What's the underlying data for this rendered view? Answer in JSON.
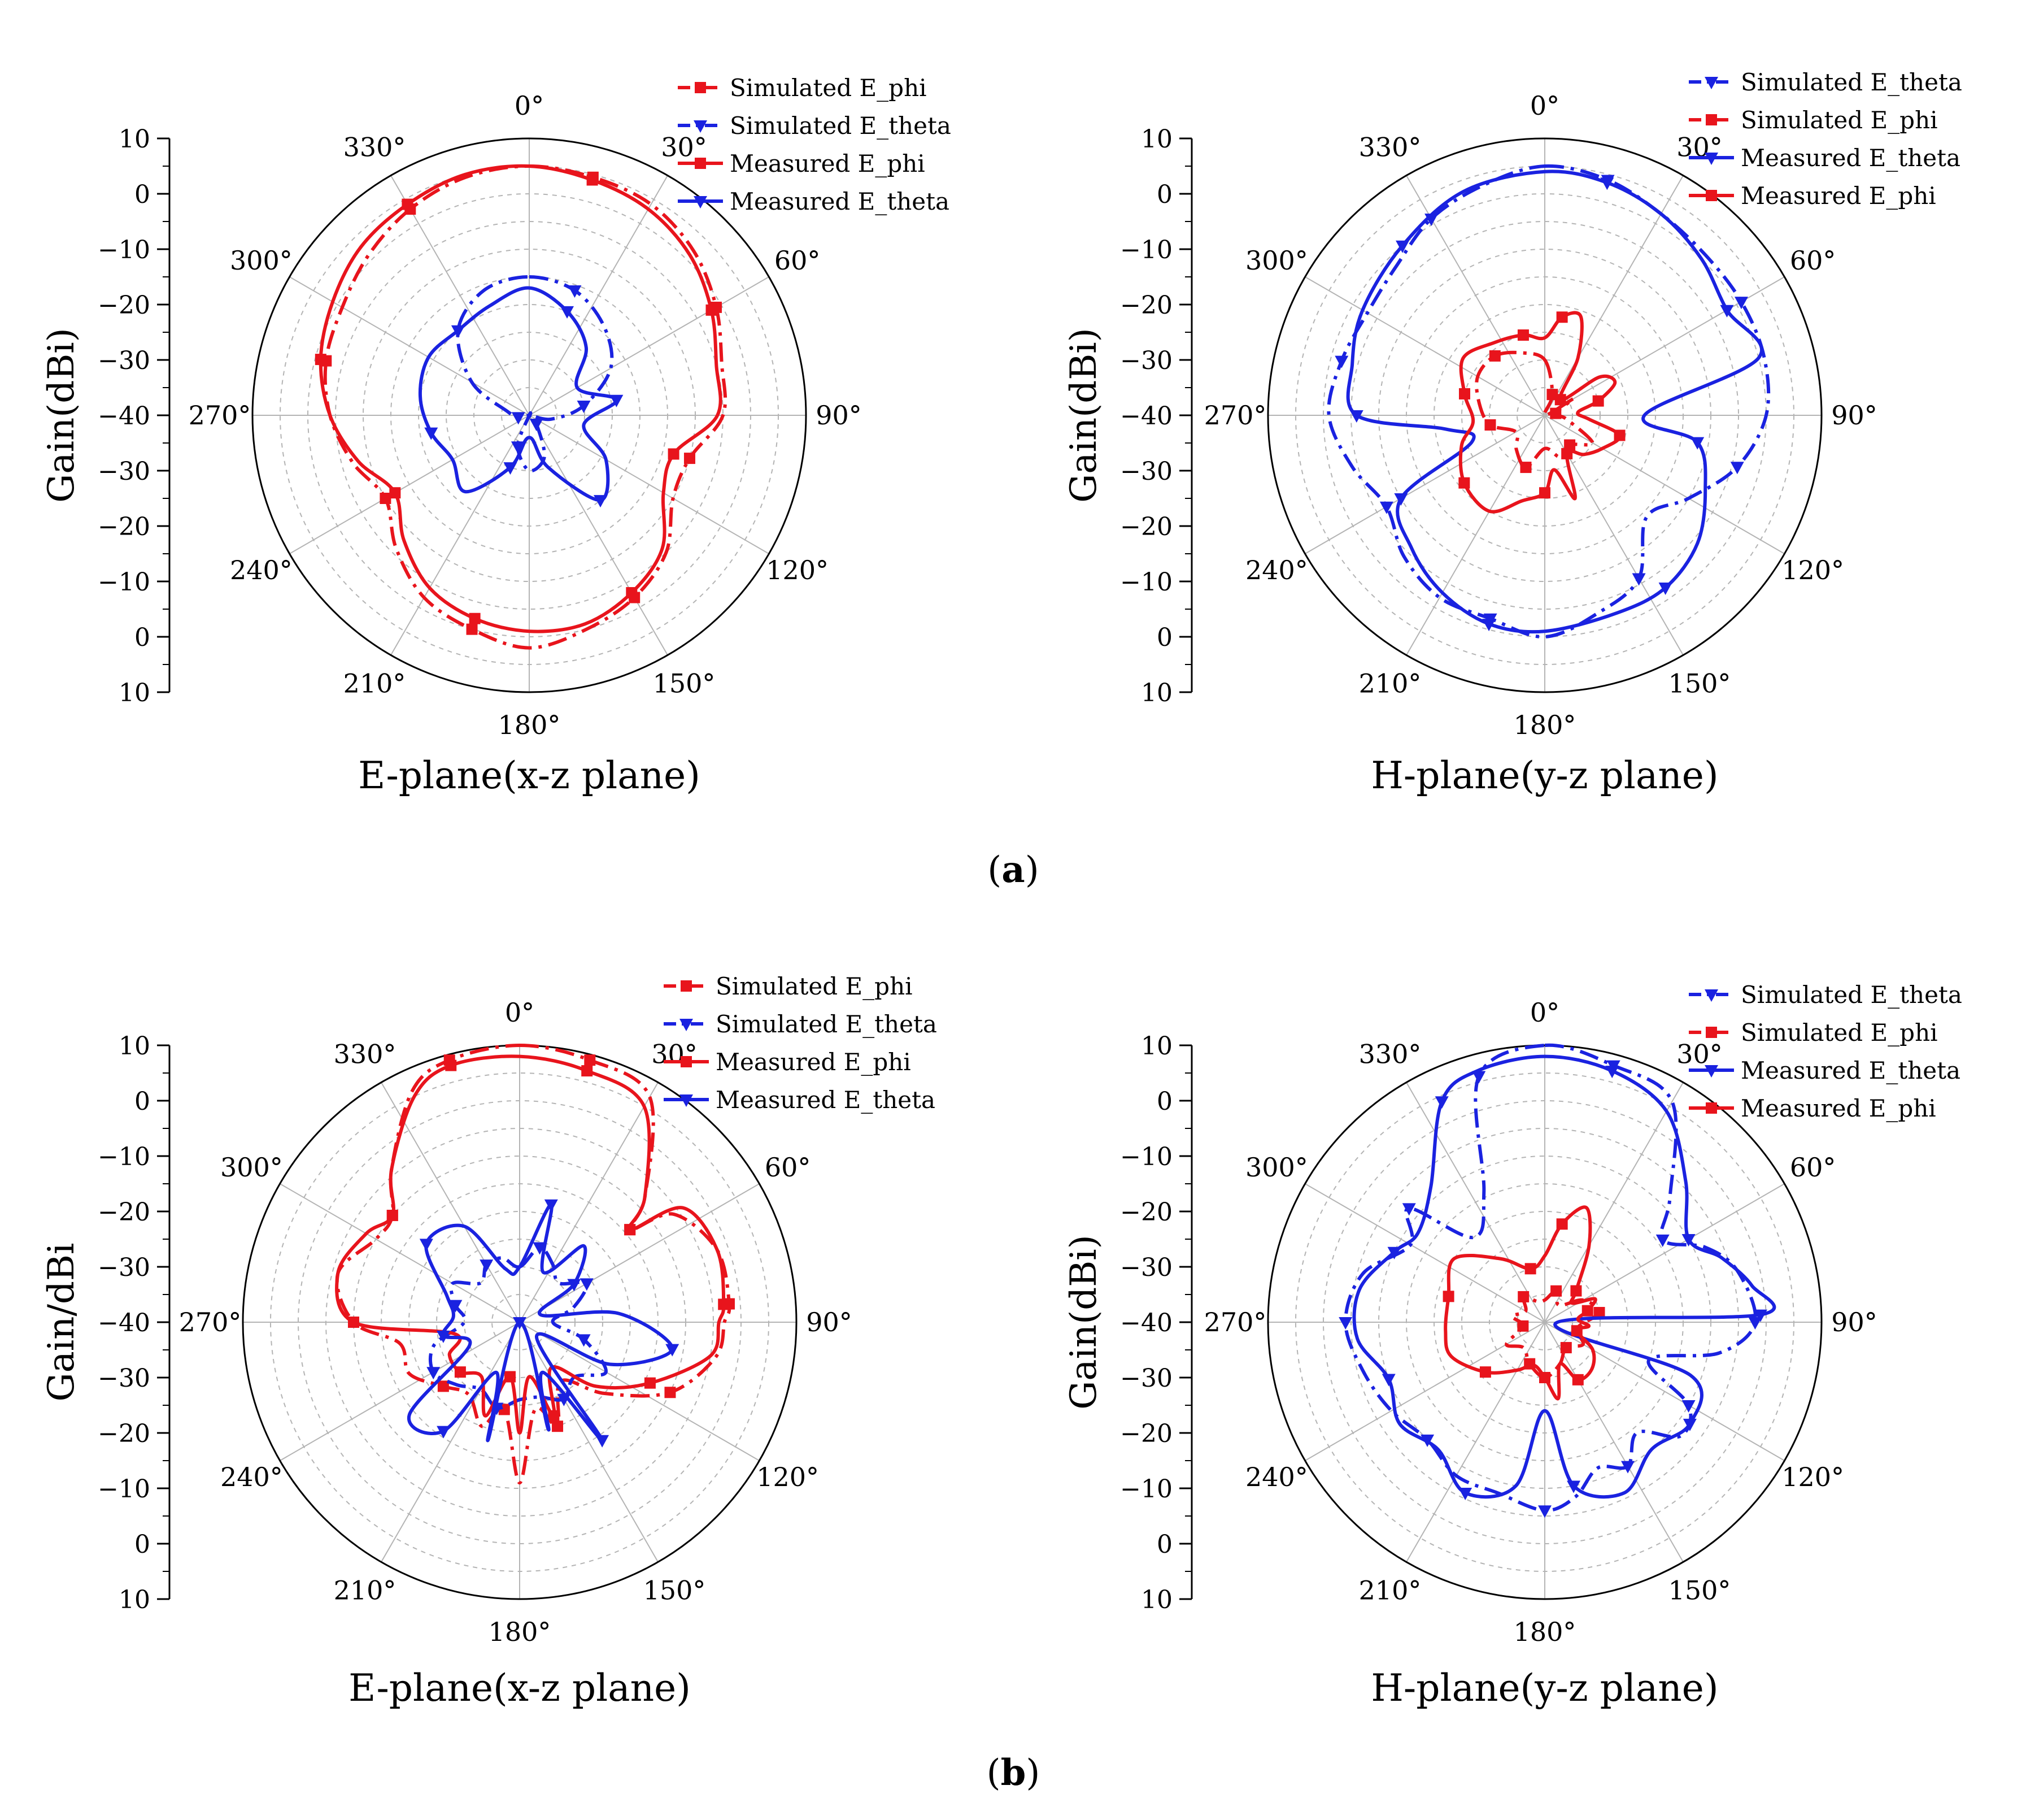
{
  "figure": {
    "captions": [
      {
        "open": "(",
        "letter": "a",
        "close": ")"
      },
      {
        "open": "(",
        "letter": "b",
        "close": ")"
      }
    ]
  },
  "colors": {
    "red": "#e8141c",
    "blue": "#1a22e0",
    "grid": "#b4b4b4"
  },
  "chart_data": [
    {
      "type": "polar-line",
      "title": "E-plane(x-z plane)",
      "ylabel": "Gain(dBi)",
      "radial_range": [
        -40,
        10
      ],
      "radial_ticks": [
        "10",
        "0",
        "-10",
        "-20",
        "-30",
        "-40",
        "-30",
        "-20",
        "-10",
        "0",
        "10"
      ],
      "angle_labels": [
        "0°",
        "30°",
        "60°",
        "90°",
        "120°",
        "150°",
        "180°",
        "210°",
        "240°",
        "270°",
        "300°",
        "330°"
      ],
      "legend": [
        "Simulated E_phi",
        "Simulated E_theta",
        "Measured E_phi",
        "Measured E_theta"
      ],
      "series": [
        {
          "name": "Simulated E_phi",
          "color": "red",
          "style": "dashdot",
          "marker": "square",
          "angles": [
            0,
            15,
            30,
            45,
            60,
            75,
            90,
            105,
            120,
            135,
            150,
            165,
            180,
            195,
            210,
            225,
            240,
            255,
            270,
            285,
            300,
            315,
            330,
            345
          ],
          "values": [
            5,
            4.5,
            4,
            2,
            -1,
            -4,
            -5,
            -10,
            -10,
            -5,
            -2,
            0,
            2,
            0,
            -2,
            -6,
            -10,
            -7,
            -4,
            -2,
            -1,
            1,
            3,
            4.5
          ]
        },
        {
          "name": "Simulated E_theta",
          "color": "blue",
          "style": "dashdot",
          "marker": "triangle",
          "angles": [
            0,
            20,
            40,
            60,
            80,
            100,
            120,
            140,
            160,
            180,
            200,
            220,
            240,
            260,
            280,
            300,
            320,
            340
          ],
          "values": [
            -15,
            -16,
            -19,
            -23,
            -30,
            -36,
            -40,
            -38,
            -32,
            -30,
            -34,
            -40,
            -40,
            -38,
            -36,
            -28,
            -20,
            -16
          ]
        },
        {
          "name": "Measured E_phi",
          "color": "red",
          "style": "solid",
          "marker": "square",
          "angles": [
            0,
            15,
            30,
            45,
            60,
            75,
            90,
            105,
            120,
            135,
            150,
            165,
            180,
            195,
            210,
            225,
            240,
            255,
            270,
            285,
            300,
            315,
            330,
            345
          ],
          "values": [
            5,
            4,
            3,
            1,
            -2,
            -5,
            -6,
            -13,
            -12,
            -6,
            -3,
            -1,
            -1,
            -2,
            -4,
            -8,
            -12,
            -8,
            -4,
            -1,
            1,
            3,
            4,
            5
          ]
        },
        {
          "name": "Measured E_theta",
          "color": "blue",
          "style": "solid",
          "marker": "triangle",
          "angles": [
            0,
            20,
            40,
            60,
            80,
            100,
            120,
            140,
            160,
            180,
            200,
            220,
            240,
            260,
            280,
            300,
            320,
            340
          ],
          "values": [
            -17,
            -20,
            -24,
            -30,
            -24,
            -30,
            -24,
            -20,
            -30,
            -36,
            -30,
            -22,
            -24,
            -22,
            -20,
            -19,
            -20,
            -19
          ]
        }
      ]
    },
    {
      "type": "polar-line",
      "title": "H-plane(y-z plane)",
      "ylabel": "Gain(dBi)",
      "radial_range": [
        -40,
        10
      ],
      "radial_ticks": [
        "10",
        "0",
        "-10",
        "-20",
        "-30",
        "-40",
        "-30",
        "-20",
        "-10",
        "0",
        "10"
      ],
      "angle_labels": [
        "0°",
        "30°",
        "60°",
        "90°",
        "120°",
        "150°",
        "180°",
        "210°",
        "240°",
        "270°",
        "300°",
        "330°"
      ],
      "legend": [
        "Simulated E_theta",
        "Simulated E_phi",
        "Measured E_theta",
        "Measured E_phi"
      ],
      "series": [
        {
          "name": "Simulated E_theta",
          "color": "blue",
          "style": "dashdot",
          "marker": "triangle",
          "angles": [
            0,
            15,
            30,
            45,
            60,
            75,
            90,
            105,
            120,
            135,
            150,
            165,
            180,
            195,
            210,
            225,
            240,
            255,
            270,
            285,
            300,
            315,
            330,
            345
          ],
          "values": [
            5,
            4,
            2,
            1,
            1,
            1,
            0,
            -4,
            -10,
            -14,
            -6,
            -3,
            0,
            -2,
            -2,
            -4,
            -7,
            -4,
            -1,
            -2,
            -3,
            -2,
            1,
            3
          ]
        },
        {
          "name": "Simulated E_phi",
          "color": "red",
          "style": "dashdot",
          "marker": "square",
          "angles": [
            0,
            20,
            40,
            60,
            80,
            100,
            120,
            140,
            160,
            180,
            200,
            220,
            240,
            260,
            280,
            300,
            320,
            340
          ],
          "values": [
            -30,
            -36,
            -40,
            -34,
            -38,
            -36,
            -30,
            -33,
            -32,
            -34,
            -30,
            -32,
            -34,
            -30,
            -28,
            -26,
            -26,
            -28
          ]
        },
        {
          "name": "Measured E_theta",
          "color": "blue",
          "style": "solid",
          "marker": "triangle",
          "angles": [
            0,
            15,
            30,
            45,
            60,
            75,
            90,
            100,
            115,
            130,
            145,
            160,
            180,
            195,
            210,
            225,
            240,
            250,
            262,
            270,
            285,
            300,
            320,
            340
          ],
          "values": [
            4,
            3.5,
            2,
            0,
            -2,
            0,
            -22,
            -12,
            -8,
            -4,
            -2,
            -2,
            -1,
            -1,
            -3,
            -6,
            -10,
            -26,
            -22,
            -6,
            -4,
            -2,
            0,
            3
          ]
        },
        {
          "name": "Measured E_phi",
          "color": "red",
          "style": "solid",
          "marker": "square",
          "angles": [
            0,
            10,
            20,
            30,
            45,
            55,
            65,
            75,
            85,
            95,
            105,
            120,
            135,
            150,
            160,
            170,
            180,
            195,
            210,
            230,
            250,
            265,
            285,
            305,
            325,
            345
          ],
          "values": [
            -26,
            -22,
            -21,
            -28,
            -36,
            -28,
            -26,
            -30,
            -34,
            -32,
            -26,
            -28,
            -30,
            -32,
            -24,
            -30,
            -26,
            -24,
            -20,
            -21,
            -24,
            -27,
            -25,
            -22,
            -24,
            -25
          ]
        }
      ]
    },
    {
      "type": "polar-line",
      "title": "E-plane(x-z plane)",
      "ylabel": "Gain/dBi",
      "radial_range": [
        -40,
        10
      ],
      "radial_ticks": [
        "10",
        "0",
        "-10",
        "-20",
        "-30",
        "-40",
        "-30",
        "-20",
        "-10",
        "0",
        "10"
      ],
      "angle_labels": [
        "0°",
        "30°",
        "60°",
        "90°",
        "120°",
        "150°",
        "180°",
        "210°",
        "240°",
        "270°",
        "300°",
        "330°"
      ],
      "legend": [
        "Simulated E_phi",
        "Simulated E_theta",
        "Measured E_phi",
        "Measured E_theta"
      ],
      "series": [
        {
          "name": "Simulated E_phi",
          "color": "red",
          "style": "dashdot",
          "marker": "square",
          "angles": [
            0,
            15,
            30,
            45,
            50,
            55,
            70,
            85,
            90,
            100,
            115,
            130,
            145,
            160,
            170,
            180,
            190,
            200,
            215,
            230,
            245,
            260,
            270,
            285,
            300,
            310,
            320,
            335,
            345
          ],
          "values": [
            10,
            9,
            7,
            -8,
            -14,
            -6,
            -2,
            -2,
            -3,
            -4,
            -10,
            -20,
            -27,
            -20,
            -24,
            -11,
            -24,
            -20,
            -24,
            -22,
            -18,
            -18,
            -10,
            -6,
            -10,
            -10,
            -4,
            6,
            9
          ]
        },
        {
          "name": "Simulated E_theta",
          "color": "blue",
          "style": "dashdot",
          "marker": "triangle",
          "angles": [
            0,
            15,
            30,
            45,
            60,
            75,
            90,
            105,
            120,
            135,
            150,
            165,
            180,
            195,
            210,
            225,
            240,
            255,
            270,
            285,
            300,
            315,
            330,
            345
          ],
          "values": [
            -30,
            -26,
            -28,
            -30,
            -26,
            -30,
            -34,
            -28,
            -22,
            -26,
            -24,
            -26,
            -26,
            -24,
            -26,
            -24,
            -22,
            -24,
            -30,
            -28,
            -26,
            -30,
            -28,
            -28
          ]
        },
        {
          "name": "Measured E_phi",
          "color": "red",
          "style": "solid",
          "marker": "square",
          "angles": [
            0,
            15,
            30,
            45,
            50,
            55,
            70,
            85,
            90,
            100,
            115,
            130,
            145,
            160,
            170,
            180,
            190,
            200,
            215,
            230,
            245,
            260,
            270,
            285,
            300,
            310,
            320,
            335,
            345
          ],
          "values": [
            8,
            7,
            5,
            -8,
            -14,
            -4,
            -2,
            -3,
            -4,
            -5,
            -14,
            -22,
            -30,
            -22,
            -30,
            -20,
            -30,
            -22,
            -28,
            -26,
            -26,
            -28,
            -10,
            -6,
            -8,
            -10,
            -4,
            5,
            8
          ]
        },
        {
          "name": "Measured E_theta",
          "color": "blue",
          "style": "solid",
          "marker": "triangle",
          "angles": [
            0,
            15,
            25,
            40,
            55,
            70,
            85,
            100,
            115,
            130,
            145,
            155,
            165,
            180,
            195,
            205,
            215,
            230,
            245,
            260,
            275,
            290,
            310,
            330,
            345
          ],
          "values": [
            -30,
            -18,
            -30,
            -22,
            -28,
            -36,
            -22,
            -12,
            -22,
            -36,
            -14,
            -30,
            -20,
            -40,
            -18,
            -30,
            -16,
            -14,
            -30,
            -26,
            -28,
            -26,
            -18,
            -20,
            -30
          ]
        }
      ]
    },
    {
      "type": "polar-line",
      "title": "H-plane(y-z plane)",
      "ylabel": "Gain(dBi)",
      "radial_range": [
        -40,
        10
      ],
      "radial_ticks": [
        "10",
        "0",
        "-10",
        "-20",
        "-30",
        "-40",
        "-30",
        "-20",
        "-10",
        "0",
        "10"
      ],
      "angle_labels": [
        "0°",
        "30°",
        "60°",
        "90°",
        "120°",
        "150°",
        "180°",
        "210°",
        "240°",
        "270°",
        "300°",
        "330°"
      ],
      "legend": [
        "Simulated E_theta",
        "Simulated E_phi",
        "Measured E_theta",
        "Measured E_phi"
      ],
      "series": [
        {
          "name": "Simulated E_theta",
          "color": "blue",
          "style": "dashdot",
          "marker": "triangle",
          "angles": [
            0,
            15,
            30,
            45,
            55,
            65,
            75,
            90,
            100,
            110,
            120,
            130,
            140,
            150,
            160,
            170,
            180,
            195,
            210,
            225,
            240,
            255,
            270,
            285,
            300,
            310,
            320,
            335,
            345
          ],
          "values": [
            10,
            8,
            6,
            -8,
            -14,
            -8,
            -4,
            -2,
            -8,
            -20,
            -10,
            -8,
            -14,
            -10,
            -12,
            -8,
            -6,
            -8,
            -8,
            -10,
            -8,
            -6,
            -4,
            -6,
            -12,
            -8,
            -20,
            -14,
            6
          ]
        },
        {
          "name": "Simulated E_phi",
          "color": "red",
          "style": "dashdot",
          "marker": "square",
          "angles": [
            0,
            20,
            40,
            60,
            80,
            100,
            120,
            140,
            160,
            180,
            200,
            220,
            240,
            260,
            280,
            300,
            320,
            340
          ],
          "values": [
            -36,
            -34,
            -36,
            -32,
            -30,
            -34,
            -32,
            -34,
            -32,
            -30,
            -32,
            -34,
            -32,
            -36,
            -34,
            -36,
            -34,
            -36
          ]
        },
        {
          "name": "Measured E_theta",
          "color": "blue",
          "style": "solid",
          "marker": "triangle",
          "angles": [
            0,
            15,
            30,
            45,
            60,
            70,
            80,
            88,
            95,
            110,
            125,
            140,
            155,
            170,
            180,
            190,
            205,
            220,
            235,
            250,
            265,
            280,
            295,
            305,
            320,
            335,
            345
          ],
          "values": [
            8,
            7,
            4,
            -4,
            -10,
            -6,
            -2,
            -1,
            -38,
            -12,
            -8,
            -10,
            -6,
            -10,
            -24,
            -10,
            -6,
            -10,
            -8,
            -10,
            -6,
            -6,
            -10,
            -12,
            -8,
            4,
            7
          ]
        },
        {
          "name": "Measured E_phi",
          "color": "red",
          "style": "solid",
          "marker": "square",
          "angles": [
            0,
            10,
            20,
            30,
            45,
            55,
            65,
            75,
            85,
            95,
            105,
            120,
            135,
            150,
            160,
            170,
            180,
            195,
            210,
            230,
            250,
            265,
            285,
            305,
            325,
            345
          ],
          "values": [
            -28,
            -22,
            -18,
            -24,
            -32,
            -34,
            -30,
            -32,
            -34,
            -32,
            -34,
            -30,
            -28,
            -28,
            -32,
            -26,
            -30,
            -32,
            -30,
            -26,
            -22,
            -22,
            -22,
            -20,
            -26,
            -30
          ]
        }
      ]
    }
  ]
}
